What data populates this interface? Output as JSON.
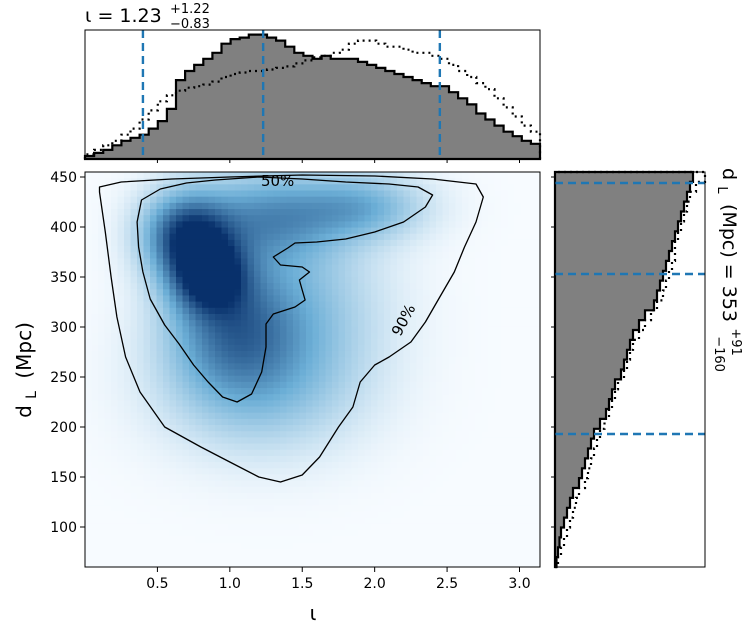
{
  "chart_data": [
    {
      "type": "heatmap",
      "panel": "joint",
      "xlabel": "ι",
      "ylabel_main": "d",
      "ylabel_sub": "L",
      "ylabel_unit": "(Mpc)",
      "xlim": [
        0.0,
        3.14159
      ],
      "ylim": [
        60,
        455
      ],
      "x_ticks": [
        0.5,
        1.0,
        1.5,
        2.0,
        2.5,
        3.0
      ],
      "x_tick_labels": [
        "0.5",
        "1.0",
        "1.5",
        "2.0",
        "2.5",
        "3.0"
      ],
      "y_ticks": [
        100,
        150,
        200,
        250,
        300,
        350,
        400,
        450
      ],
      "y_tick_labels": [
        "100",
        "150",
        "200",
        "250",
        "300",
        "350",
        "400",
        "450"
      ],
      "colormap": "Blues",
      "density_peaks": [
        {
          "x": 0.85,
          "y": 352,
          "amplitude": 1.0,
          "sx": 0.18,
          "sy": 25
        },
        {
          "x": 0.7,
          "y": 392,
          "amplitude": 0.95,
          "sx": 0.2,
          "sy": 28
        },
        {
          "x": 1.25,
          "y": 410,
          "amplitude": 0.55,
          "sx": 0.35,
          "sy": 30
        },
        {
          "x": 1.9,
          "y": 420,
          "amplitude": 0.45,
          "sx": 0.3,
          "sy": 22
        },
        {
          "x": 1.0,
          "y": 300,
          "amplitude": 0.6,
          "sx": 0.3,
          "sy": 45
        },
        {
          "x": 1.45,
          "y": 320,
          "amplitude": 0.35,
          "sx": 0.4,
          "sy": 60
        },
        {
          "x": 1.2,
          "y": 240,
          "amplitude": 0.3,
          "sx": 0.45,
          "sy": 45
        }
      ],
      "contours": [
        {
          "label": "50%",
          "label_at": [
            1.33,
            446
          ],
          "points": [
            [
              0.9,
              447
            ],
            [
              1.2,
              450
            ],
            [
              1.5,
              448
            ],
            [
              1.8,
              445
            ],
            [
              2.1,
              443
            ],
            [
              2.3,
              440
            ],
            [
              2.4,
              432
            ],
            [
              2.35,
              420
            ],
            [
              2.2,
              405
            ],
            [
              2.0,
              395
            ],
            [
              1.8,
              388
            ],
            [
              1.6,
              385
            ],
            [
              1.45,
              384
            ],
            [
              1.4,
              379
            ],
            [
              1.3,
              370
            ],
            [
              1.35,
              362
            ],
            [
              1.5,
              360
            ],
            [
              1.55,
              355
            ],
            [
              1.48,
              347
            ],
            [
              1.5,
              337
            ],
            [
              1.52,
              327
            ],
            [
              1.45,
              320
            ],
            [
              1.3,
              313
            ],
            [
              1.25,
              303
            ],
            [
              1.25,
              280
            ],
            [
              1.22,
              255
            ],
            [
              1.15,
              233
            ],
            [
              1.05,
              225
            ],
            [
              0.95,
              230
            ],
            [
              0.85,
              245
            ],
            [
              0.75,
              262
            ],
            [
              0.65,
              283
            ],
            [
              0.55,
              302
            ],
            [
              0.45,
              328
            ],
            [
              0.4,
              355
            ],
            [
              0.37,
              380
            ],
            [
              0.36,
              405
            ],
            [
              0.39,
              427
            ],
            [
              0.52,
              438
            ],
            [
              0.7,
              444
            ],
            [
              0.9,
              447
            ]
          ]
        },
        {
          "label": "90%",
          "label_at": [
            2.2,
            307
          ],
          "points": [
            [
              0.1,
              435
            ],
            [
              0.1,
              440
            ],
            [
              0.25,
              445
            ],
            [
              0.6,
              448
            ],
            [
              1.0,
              450
            ],
            [
              1.5,
              452
            ],
            [
              2.0,
              451
            ],
            [
              2.4,
              448
            ],
            [
              2.7,
              443
            ],
            [
              2.75,
              430
            ],
            [
              2.7,
              405
            ],
            [
              2.62,
              380
            ],
            [
              2.55,
              355
            ],
            [
              2.45,
              330
            ],
            [
              2.35,
              305
            ],
            [
              2.25,
              285
            ],
            [
              2.1,
              270
            ],
            [
              2.0,
              262
            ],
            [
              1.9,
              245
            ],
            [
              1.85,
              220
            ],
            [
              1.75,
              200
            ],
            [
              1.62,
              170
            ],
            [
              1.5,
              152
            ],
            [
              1.35,
              145
            ],
            [
              1.2,
              150
            ],
            [
              1.0,
              165
            ],
            [
              0.8,
              180
            ],
            [
              0.55,
              200
            ],
            [
              0.38,
              235
            ],
            [
              0.28,
              270
            ],
            [
              0.22,
              310
            ],
            [
              0.18,
              350
            ],
            [
              0.14,
              395
            ],
            [
              0.1,
              435
            ]
          ]
        }
      ]
    },
    {
      "type": "histogram",
      "panel": "top",
      "title_main": "ι = 1.23",
      "title_sup": "+1.22",
      "title_sub": "−0.83",
      "x_edges_range": [
        0.0,
        3.14159
      ],
      "bins": 50,
      "series": [
        {
          "fill": "#808080",
          "style": "solid",
          "values": [
            2,
            4,
            6,
            9,
            12,
            14,
            16,
            20,
            25,
            33,
            52,
            58,
            62,
            66,
            70,
            76,
            79,
            80,
            82,
            82,
            80,
            78,
            74,
            70,
            68,
            66,
            68,
            66,
            66,
            66,
            64,
            62,
            60,
            58,
            56,
            54,
            52,
            50,
            48,
            48,
            44,
            40,
            36,
            30,
            26,
            22,
            18,
            15,
            12,
            10
          ]
        },
        {
          "fill": "none",
          "style": "dotted",
          "values": [
            3,
            6,
            9,
            12,
            16,
            20,
            26,
            32,
            38,
            42,
            45,
            47,
            48,
            49,
            51,
            54,
            56,
            57,
            58,
            58,
            59,
            60,
            61,
            63,
            65,
            67,
            68,
            70,
            72,
            76,
            78,
            78,
            76,
            74,
            74,
            72,
            70,
            70,
            68,
            66,
            62,
            58,
            54,
            50,
            46,
            40,
            34,
            28,
            22,
            18
          ]
        }
      ],
      "vlines": [
        0.4,
        1.23,
        2.45
      ]
    },
    {
      "type": "histogram",
      "panel": "right",
      "orientation": "horizontal",
      "side_label_main": "d",
      "side_label_sub": "L",
      "side_label_rest": "(Mpc) = 353",
      "side_label_sup": "+91",
      "side_label_sub2": "−160",
      "y_edges_range": [
        60,
        455
      ],
      "bins": 40,
      "series": [
        {
          "fill": "#808080",
          "style": "solid",
          "values": [
            1,
            2,
            3,
            4,
            6,
            8,
            10,
            12,
            16,
            18,
            20,
            22,
            24,
            26,
            30,
            34,
            36,
            38,
            40,
            44,
            46,
            48,
            50,
            52,
            56,
            60,
            66,
            68,
            70,
            72,
            74,
            76,
            78,
            80,
            82,
            84,
            86,
            88,
            90,
            92
          ]
        },
        {
          "fill": "none",
          "style": "dotted",
          "values": [
            2,
            4,
            6,
            8,
            10,
            12,
            14,
            16,
            20,
            22,
            24,
            26,
            28,
            30,
            33,
            36,
            38,
            40,
            42,
            46,
            48,
            50,
            52,
            56,
            60,
            64,
            68,
            72,
            74,
            76,
            78,
            80,
            80,
            82,
            84,
            86,
            88,
            90,
            94,
            100
          ]
        }
      ],
      "hlines": [
        193,
        353,
        444
      ]
    }
  ],
  "colors": {
    "hist_fill": "#808080",
    "hist_edge": "#000000",
    "ci_line": "#1f77b4",
    "contour": "#000000",
    "colormap_low": "#f7fbff",
    "colormap_high": "#08306b"
  }
}
